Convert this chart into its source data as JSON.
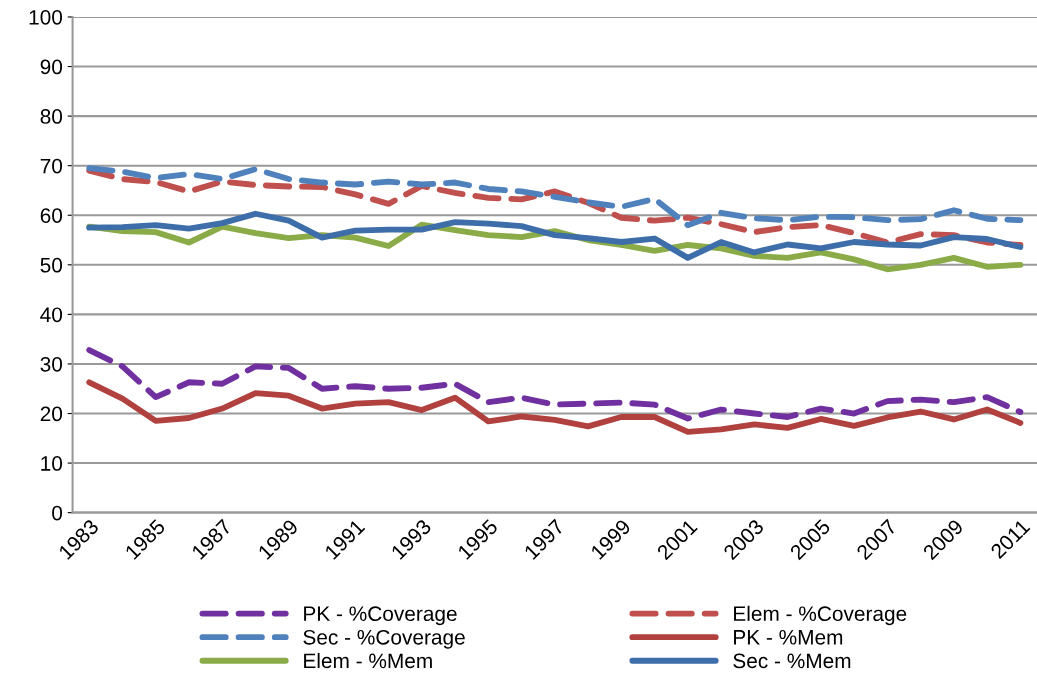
{
  "chart_data": {
    "type": "line",
    "categories": [
      "1983",
      null,
      "1985",
      null,
      "1987",
      null,
      "1989",
      null,
      "1991",
      null,
      "1993",
      null,
      "1995",
      null,
      "1997",
      null,
      "1999",
      null,
      "2001",
      null,
      "2003",
      null,
      "2005",
      null,
      "2007",
      null,
      "2009",
      null,
      "2011"
    ],
    "series": [
      {
        "name": "PK - %Coverage",
        "color": "#7030a0",
        "line_style": "dashed",
        "values": [
          32.8,
          29.5,
          23.3,
          26.3,
          26,
          29.5,
          29.2,
          25,
          25.5,
          25,
          25.2,
          26,
          22.3,
          23.2,
          21.8,
          22,
          22.2,
          21.8,
          19,
          20.8,
          20,
          19.3,
          21,
          20,
          22.5,
          22.8,
          22.3,
          23.3,
          20.3
        ]
      },
      {
        "name": "Elem - %Coverage",
        "color": "#c0504d",
        "line_style": "dashed",
        "values": [
          69,
          67.3,
          66.7,
          64.8,
          66.8,
          66.1,
          65.8,
          65.7,
          64.2,
          62.3,
          65.9,
          64.5,
          63.5,
          63.2,
          64.8,
          62.5,
          59.5,
          58.9,
          59.5,
          58.2,
          56.6,
          57.6,
          58,
          56.4,
          54.5,
          56.2,
          56,
          54.5,
          54
        ]
      },
      {
        "name": "Sec - %Coverage",
        "color": "#4f81bd",
        "line_style": "dashed",
        "values": [
          69.5,
          68.8,
          67.5,
          68.3,
          67.3,
          69.3,
          67.3,
          66.6,
          66.2,
          66.8,
          66.2,
          66.6,
          65.3,
          64.8,
          63.7,
          62.6,
          61.7,
          63.3,
          58,
          60.5,
          59.4,
          59,
          59.7,
          59.6,
          59,
          59.2,
          61,
          59.3,
          59
        ]
      },
      {
        "name": "PK - %Mem",
        "color": "#b0413e",
        "line_style": "solid",
        "values": [
          26.3,
          23,
          18.5,
          19.1,
          21,
          24.1,
          23.6,
          21,
          22,
          22.3,
          20.7,
          23.2,
          18.4,
          19.4,
          18.7,
          17.4,
          19.3,
          19.3,
          16.3,
          16.8,
          17.8,
          17.1,
          18.9,
          17.5,
          19.2,
          20.4,
          18.8,
          20.8,
          18.1
        ]
      },
      {
        "name": "Elem - %Mem",
        "color": "#8aab48",
        "line_style": "solid",
        "values": [
          57.7,
          56.8,
          56.6,
          54.5,
          57.7,
          56.4,
          55.4,
          56,
          55.5,
          53.8,
          58.1,
          57,
          56,
          55.6,
          56.8,
          55,
          54,
          52.8,
          54,
          53.3,
          51.8,
          51.4,
          52.5,
          51.1,
          49.1,
          50,
          51.4,
          49.6,
          50
        ]
      },
      {
        "name": "Sec - %Mem",
        "color": "#3d6eaa",
        "line_style": "solid",
        "values": [
          57.5,
          57.6,
          58,
          57.3,
          58.4,
          60.3,
          58.9,
          55.5,
          56.9,
          57.1,
          57.1,
          58.6,
          58.3,
          57.8,
          56,
          55.4,
          54.6,
          55.3,
          51.4,
          54.6,
          52.5,
          54.1,
          53.3,
          54.6,
          54.1,
          53.9,
          55.6,
          55.2,
          53.6
        ]
      }
    ],
    "ylim": [
      0,
      100
    ],
    "yticks": [
      0,
      10,
      20,
      30,
      40,
      50,
      60,
      70,
      80,
      90,
      100
    ],
    "grid": "y",
    "legend": "bottom",
    "marker": "none"
  }
}
